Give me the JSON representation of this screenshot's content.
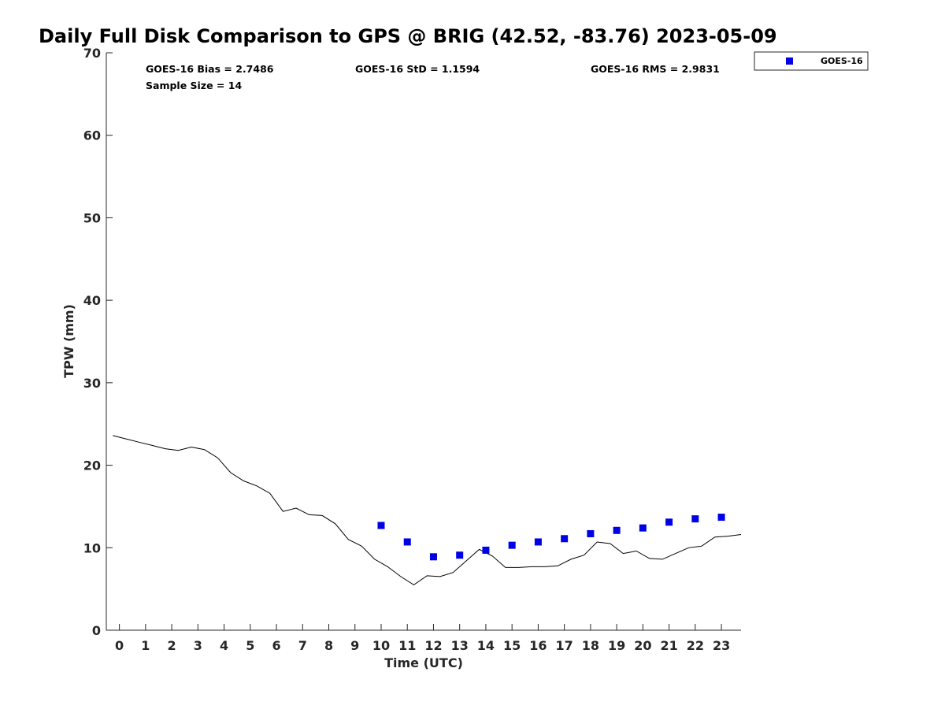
{
  "chart_data": {
    "type": "line",
    "title": "Daily Full Disk Comparison to GPS @ BRIG (42.52, -83.76) 2023-05-09",
    "xlabel": "Time (UTC)",
    "ylabel": "TPW (mm)",
    "xlim": [
      -0.5,
      23.75
    ],
    "ylim": [
      0,
      70
    ],
    "xticks": [
      0,
      1,
      2,
      3,
      4,
      5,
      6,
      7,
      8,
      9,
      10,
      11,
      12,
      13,
      14,
      15,
      16,
      17,
      18,
      19,
      20,
      21,
      22,
      23
    ],
    "yticks": [
      0,
      10,
      20,
      30,
      40,
      50,
      60,
      70
    ],
    "grid": false,
    "legend_position": "top-right",
    "stats": {
      "bias": "GOES-16 Bias = 2.7486",
      "std": "GOES-16 StD = 1.1594",
      "rms": "GOES-16 RMS = 2.9831",
      "sample": "Sample Size = 14"
    },
    "series": [
      {
        "style": "line",
        "color": "#000000",
        "x": [
          -0.25,
          0.25,
          0.75,
          1.25,
          1.75,
          2.25,
          2.75,
          3.25,
          3.75,
          4.25,
          4.75,
          5.25,
          5.75,
          6.25,
          6.75,
          7.25,
          7.75,
          8.25,
          8.75,
          9.25,
          9.75,
          10.25,
          10.75,
          11.25,
          11.75,
          12.25,
          12.75,
          13.25,
          13.75,
          14.25,
          14.75,
          15.25,
          15.75,
          16.25,
          16.75,
          17.25,
          17.75,
          18.25,
          18.75,
          19.25,
          19.75,
          20.25,
          20.75,
          21.25,
          21.75,
          22.25,
          22.75,
          23.25,
          23.75
        ],
        "y": [
          23.6,
          23.2,
          22.8,
          22.4,
          22.0,
          21.8,
          22.2,
          21.9,
          20.9,
          19.1,
          18.1,
          17.5,
          16.6,
          14.4,
          14.8,
          14.0,
          13.9,
          12.9,
          11.0,
          10.2,
          8.6,
          7.7,
          6.5,
          5.5,
          6.6,
          6.5,
          7.0,
          8.4,
          9.8,
          9.0,
          7.6,
          7.6,
          7.7,
          7.7,
          7.8,
          8.6,
          9.1,
          10.7,
          10.5,
          9.3,
          9.6,
          8.7,
          8.6,
          9.3,
          10.0,
          10.2,
          11.3,
          11.4,
          11.6
        ]
      },
      {
        "name": "GOES-16",
        "style": "square-markers",
        "color": "#0000e6",
        "x": [
          10,
          11,
          12,
          13,
          14,
          15,
          16,
          17,
          18,
          19,
          20,
          21,
          22,
          23
        ],
        "y": [
          12.7,
          10.7,
          8.9,
          9.1,
          9.7,
          10.3,
          10.7,
          11.1,
          11.7,
          12.1,
          12.4,
          13.1,
          13.5,
          13.7
        ]
      }
    ]
  }
}
